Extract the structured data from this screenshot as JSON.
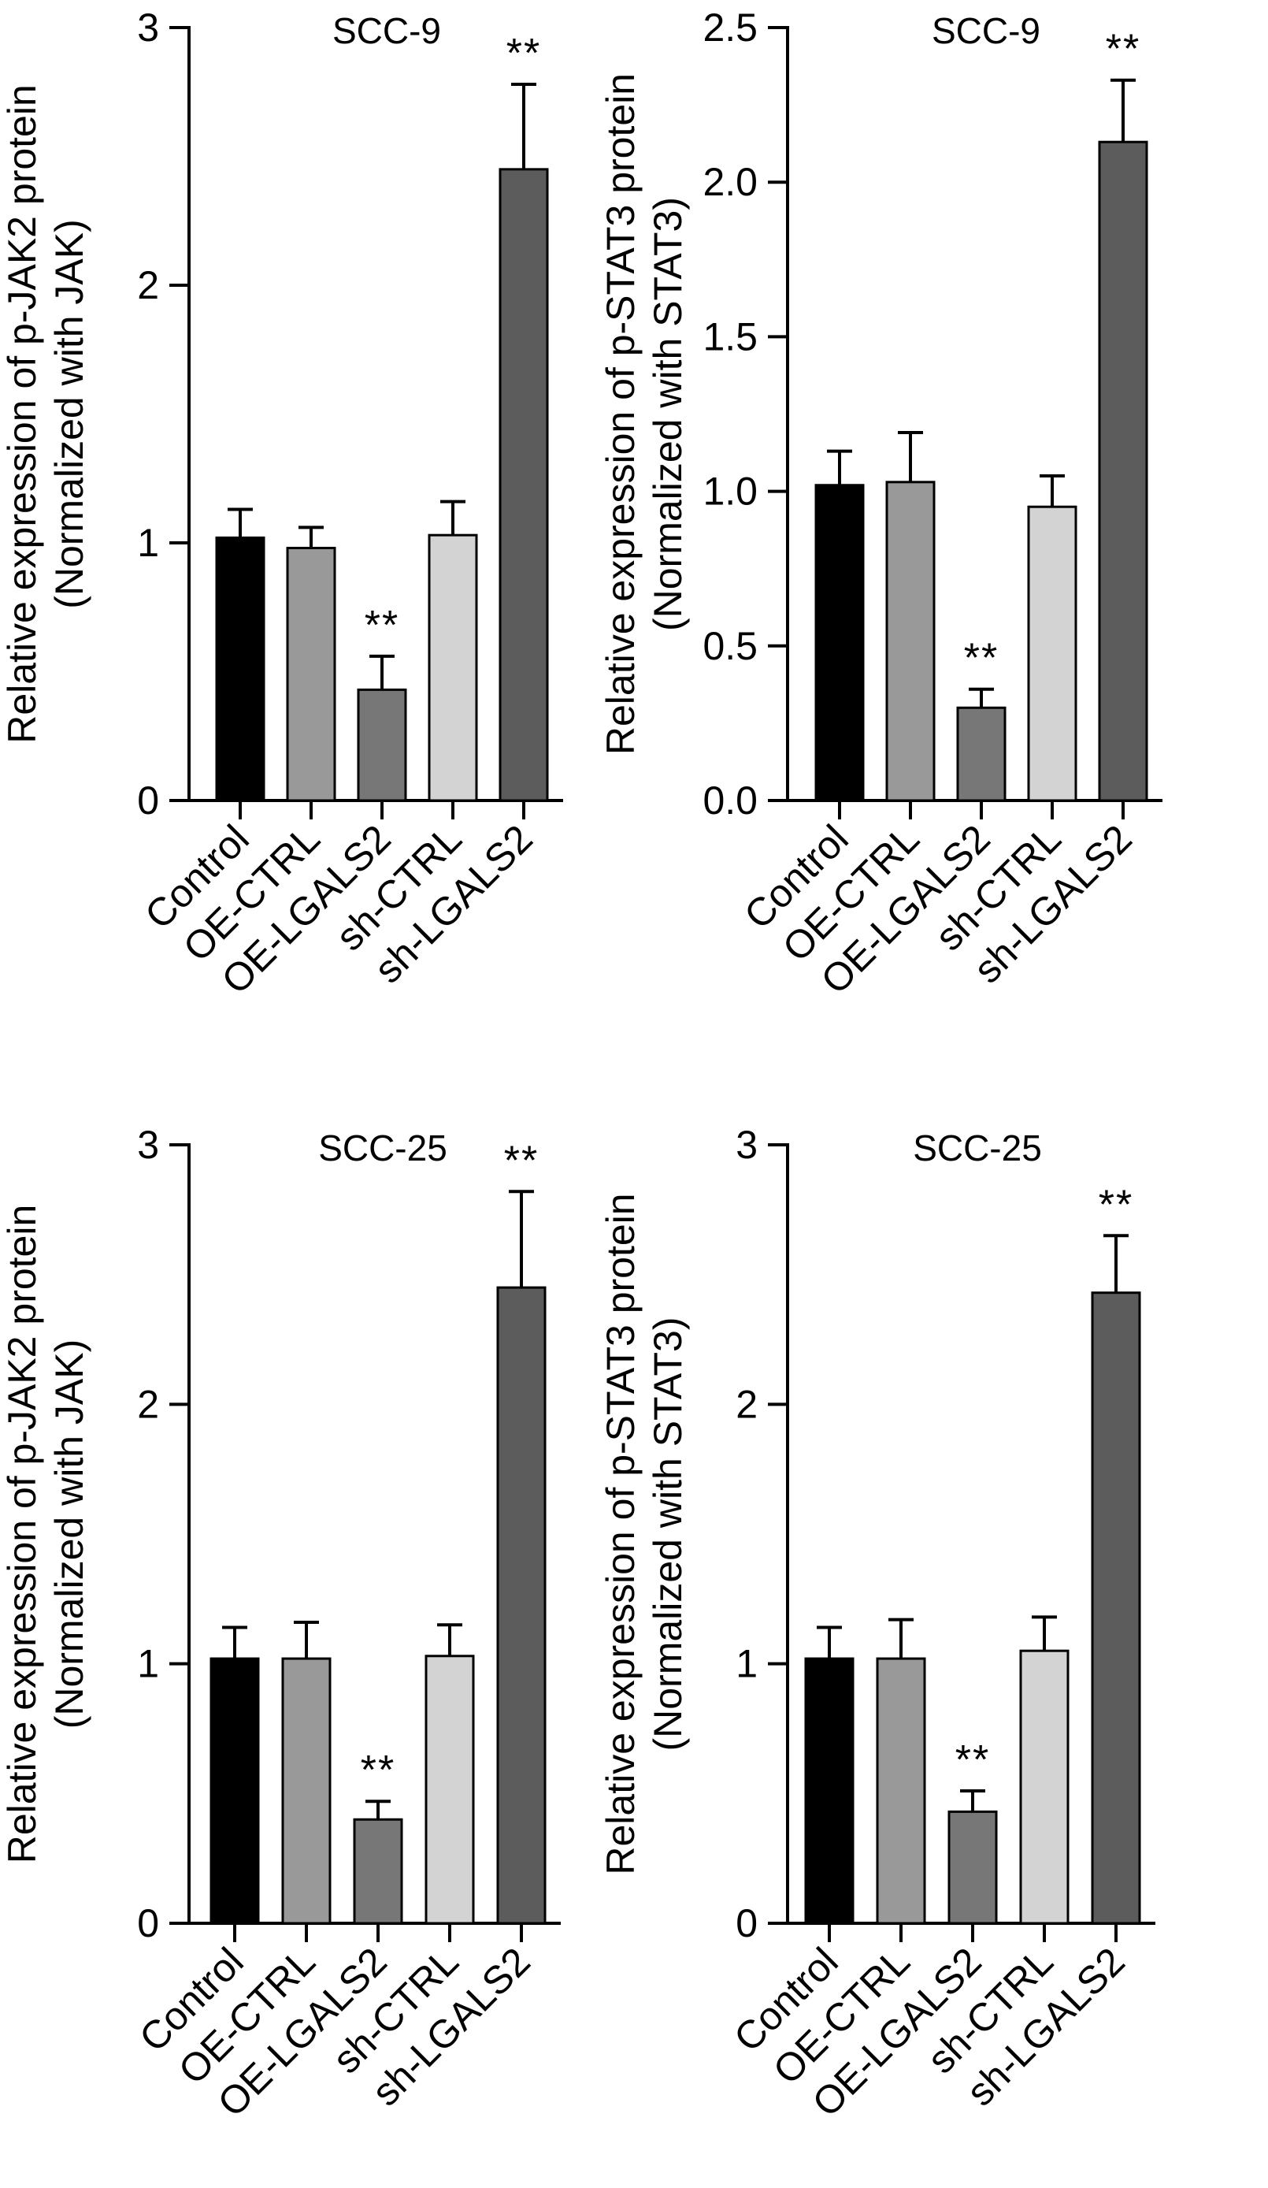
{
  "figure": {
    "panels": [
      "scc9-jak2",
      "scc9-stat3",
      "scc25-jak2",
      "scc25-stat3"
    ]
  },
  "chart_data": [
    {
      "id": "scc9-jak2",
      "type": "bar",
      "title": "SCC-9",
      "ylabel": [
        "Relative expression of p-JAK2 protein",
        "(Normalized with JAK)"
      ],
      "xlabel": "",
      "categories": [
        "Control",
        "OE-CTRL",
        "OE-LGALS2",
        "sh-CTRL",
        "sh-LGALS2"
      ],
      "values": [
        1.02,
        0.98,
        0.43,
        1.03,
        2.45
      ],
      "errors": [
        0.11,
        0.08,
        0.13,
        0.13,
        0.33
      ],
      "significance": [
        "",
        "",
        "**",
        "",
        "**"
      ],
      "colors": [
        "#000000",
        "#999999",
        "#777777",
        "#d3d3d3",
        "#5c5c5c"
      ],
      "ylim": [
        0,
        3
      ],
      "yticks": [
        0,
        1,
        2,
        3
      ],
      "ytick_labels": [
        "0",
        "1",
        "2",
        "3"
      ]
    },
    {
      "id": "scc9-stat3",
      "type": "bar",
      "title": "SCC-9",
      "ylabel": [
        "Relative expression of p-STAT3 protein",
        "(Normalized with STAT3)"
      ],
      "xlabel": "",
      "categories": [
        "Control",
        "OE-CTRL",
        "OE-LGALS2",
        "sh-CTRL",
        "sh-LGALS2"
      ],
      "values": [
        1.02,
        1.03,
        0.3,
        0.95,
        2.13
      ],
      "errors": [
        0.11,
        0.16,
        0.06,
        0.1,
        0.2
      ],
      "significance": [
        "",
        "",
        "**",
        "",
        "**"
      ],
      "colors": [
        "#000000",
        "#999999",
        "#777777",
        "#d3d3d3",
        "#5c5c5c"
      ],
      "ylim": [
        0,
        2.5
      ],
      "yticks": [
        0,
        0.5,
        1,
        1.5,
        2,
        2.5
      ],
      "ytick_labels": [
        "0.0",
        "0.5",
        "1.0",
        "1.5",
        "2.0",
        "2.5"
      ]
    },
    {
      "id": "scc25-jak2",
      "type": "bar",
      "title": "SCC-25",
      "ylabel": [
        "Relative expression of p-JAK2 protein",
        "(Normalized with JAK)"
      ],
      "xlabel": "",
      "categories": [
        "Control",
        "OE-CTRL",
        "OE-LGALS2",
        "sh-CTRL",
        "sh-LGALS2"
      ],
      "values": [
        1.02,
        1.02,
        0.4,
        1.03,
        2.45
      ],
      "errors": [
        0.12,
        0.14,
        0.07,
        0.12,
        0.37
      ],
      "significance": [
        "",
        "",
        "**",
        "",
        "**"
      ],
      "colors": [
        "#000000",
        "#999999",
        "#777777",
        "#d3d3d3",
        "#5c5c5c"
      ],
      "ylim": [
        0,
        3
      ],
      "yticks": [
        0,
        1,
        2,
        3
      ],
      "ytick_labels": [
        "0",
        "1",
        "2",
        "3"
      ]
    },
    {
      "id": "scc25-stat3",
      "type": "bar",
      "title": "SCC-25",
      "ylabel": [
        "Relative expression of p-STAT3 protein",
        "(Normalized with STAT3)"
      ],
      "xlabel": "",
      "categories": [
        "Control",
        "OE-CTRL",
        "OE-LGALS2",
        "sh-CTRL",
        "sh-LGALS2"
      ],
      "values": [
        1.02,
        1.02,
        0.43,
        1.05,
        2.43
      ],
      "errors": [
        0.12,
        0.15,
        0.08,
        0.13,
        0.22
      ],
      "significance": [
        "",
        "",
        "**",
        "",
        "**"
      ],
      "colors": [
        "#000000",
        "#999999",
        "#777777",
        "#d3d3d3",
        "#5c5c5c"
      ],
      "ylim": [
        0,
        3
      ],
      "yticks": [
        0,
        1,
        2,
        3
      ],
      "ytick_labels": [
        "0",
        "1",
        "2",
        "3"
      ]
    }
  ]
}
